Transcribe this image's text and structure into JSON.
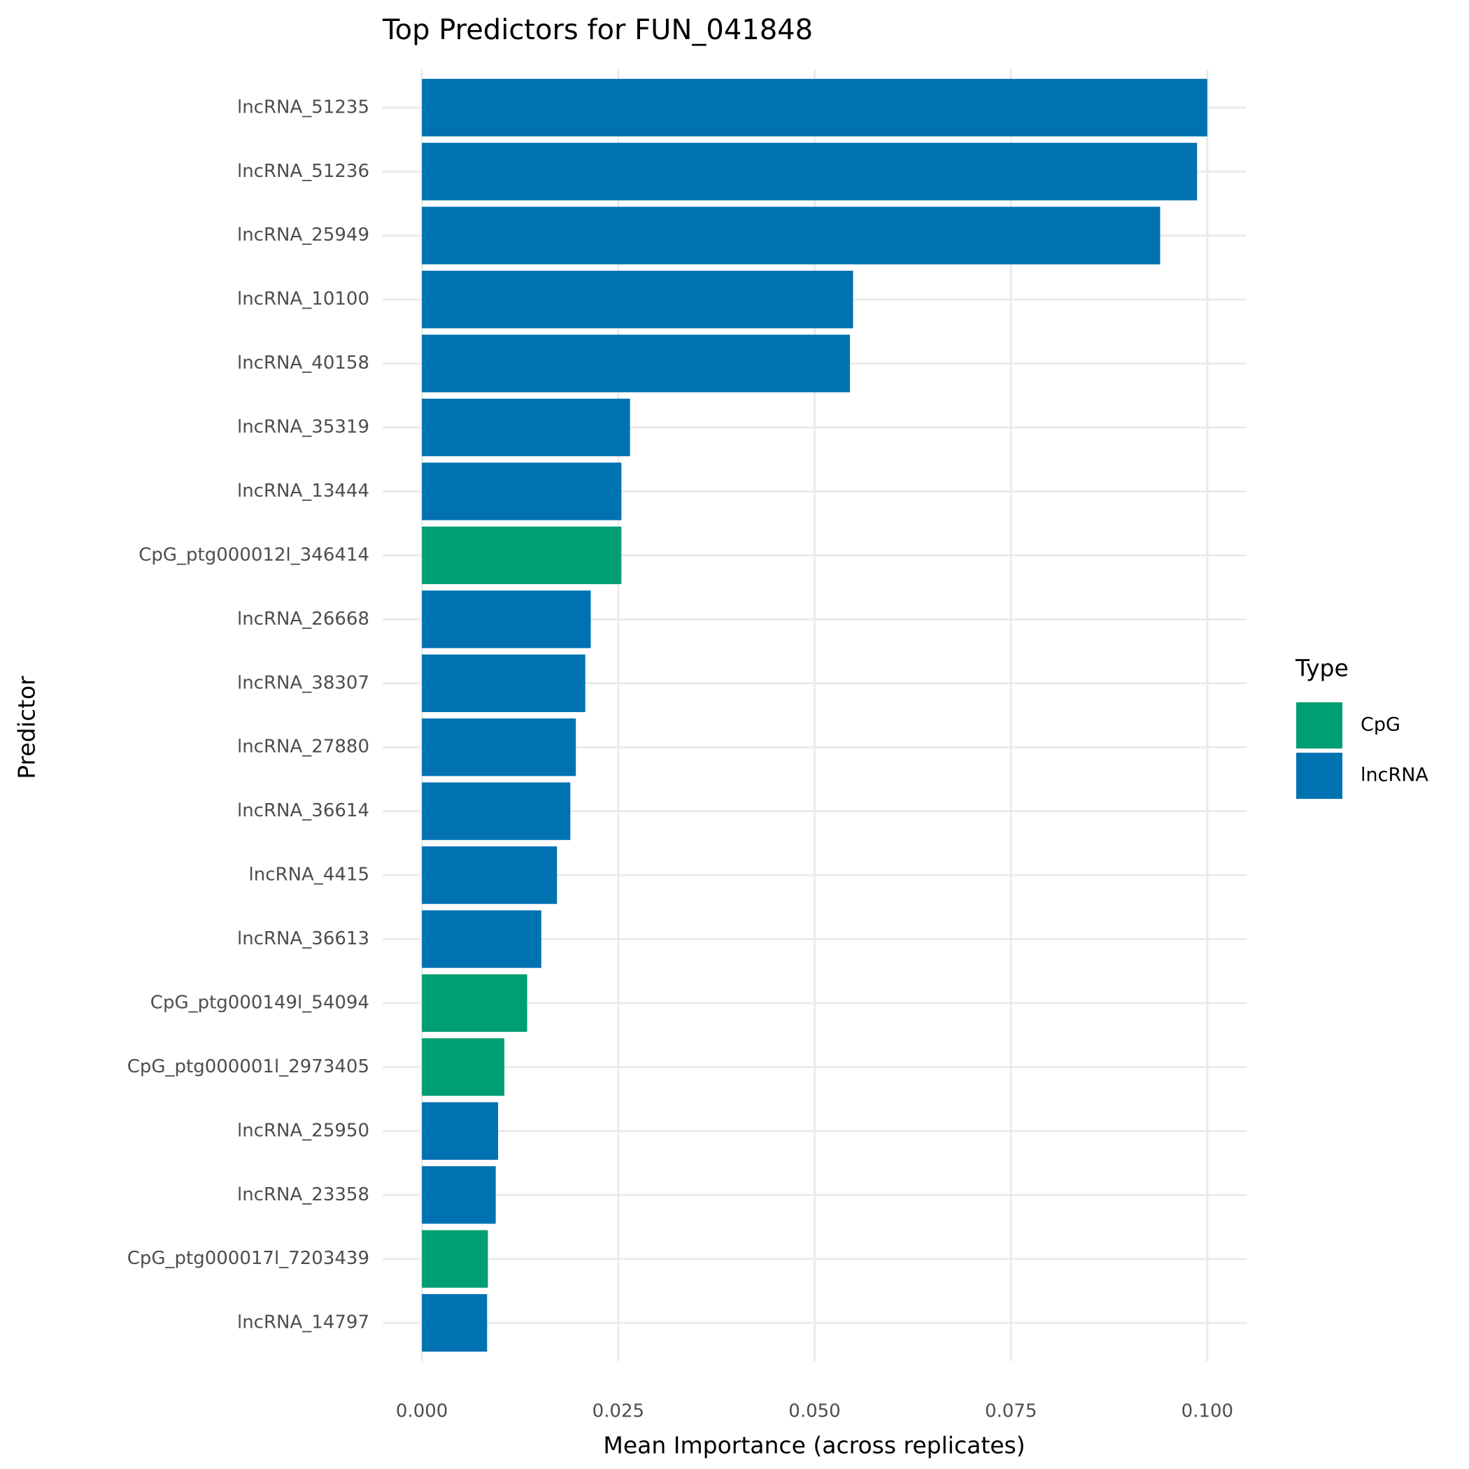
{
  "chart_data": {
    "type": "bar",
    "orientation": "horizontal",
    "title": "Top Predictors for FUN_041848",
    "x_label": "Mean Importance (across replicates)",
    "y_label": "Predictor",
    "legend_title": "Type",
    "legend_position": "right",
    "categories": [
      "lncRNA_51235",
      "lncRNA_51236",
      "lncRNA_25949",
      "lncRNA_10100",
      "lncRNA_40158",
      "lncRNA_35319",
      "lncRNA_13444",
      "CpG_ptg000012l_346414",
      "lncRNA_26668",
      "lncRNA_38307",
      "lncRNA_27880",
      "lncRNA_36614",
      "lncRNA_4415",
      "lncRNA_36613",
      "CpG_ptg000149l_54094",
      "CpG_ptg000001l_2973405",
      "lncRNA_25950",
      "lncRNA_23358",
      "CpG_ptg000017l_7203439",
      "lncRNA_14797"
    ],
    "series": [
      {
        "name": "CpG",
        "color": "#009E73",
        "values": [
          null,
          null,
          null,
          null,
          null,
          null,
          null,
          0.0254,
          null,
          null,
          null,
          null,
          null,
          null,
          0.0134,
          0.0105,
          null,
          null,
          0.0084,
          null
        ]
      },
      {
        "name": "lncRNA",
        "color": "#0072B2",
        "values": [
          0.1,
          0.0987,
          0.094,
          0.0549,
          0.0545,
          0.0265,
          0.0254,
          null,
          0.0215,
          0.0208,
          0.0196,
          0.0189,
          0.0172,
          0.0152,
          null,
          null,
          0.0097,
          0.0094,
          null,
          0.0083
        ]
      }
    ],
    "xlim": [
      -0.005,
      0.105
    ],
    "xticks": [
      {
        "value": 0,
        "label": "0.000"
      },
      {
        "value": 0.025,
        "label": "0.025"
      },
      {
        "value": 0.05,
        "label": "0.050"
      },
      {
        "value": 0.075,
        "label": "0.075"
      },
      {
        "value": 0.1,
        "label": "0.100"
      }
    ],
    "grid": true
  }
}
